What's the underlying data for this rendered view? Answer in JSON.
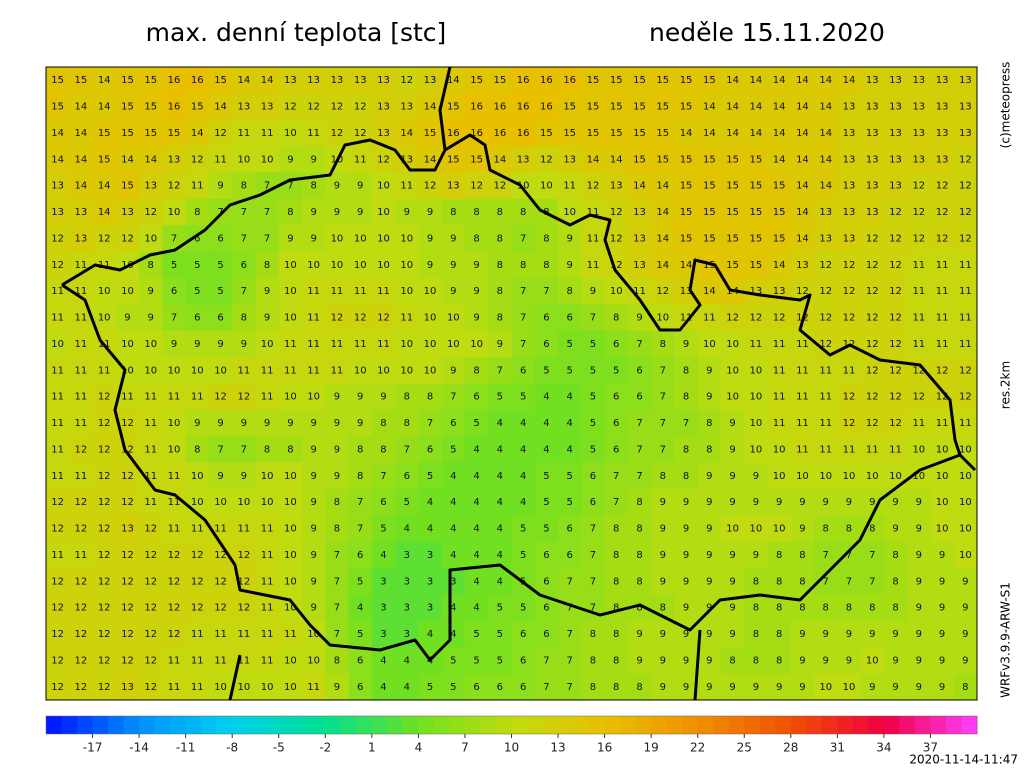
{
  "header": {
    "title": "max. denní teplota [stc]",
    "date": "neděle 15.11.2020"
  },
  "side_labels": [
    "(c)meteopress",
    "res.2km",
    "WRFv3.9.9-ARW-S1"
  ],
  "timestamp": "2020-11-14-11:47",
  "colorbar": {
    "lim": [
      -20,
      40
    ],
    "ticks": [
      -17,
      -14,
      -11,
      -8,
      -5,
      -2,
      1,
      4,
      7,
      10,
      13,
      16,
      19,
      22,
      25,
      28,
      31,
      34,
      37
    ],
    "colors": [
      "#0010ff",
      "#0090ff",
      "#00d0f0",
      "#00e090",
      "#70e020",
      "#c0dc10",
      "#e8c000",
      "#f09000",
      "#f05000",
      "#f00040",
      "#ff40ff"
    ]
  },
  "grid": {
    "rows": [
      [
        15,
        15,
        14,
        15,
        15,
        16,
        16,
        15,
        14,
        14,
        13,
        13,
        13,
        13,
        13,
        12,
        13,
        14,
        15,
        15,
        16,
        16,
        16,
        15,
        15,
        15,
        15,
        15,
        15,
        14,
        14,
        14,
        14,
        14,
        14,
        13,
        13,
        13,
        13,
        13
      ],
      [
        15,
        14,
        14,
        15,
        15,
        16,
        15,
        14,
        13,
        13,
        12,
        12,
        12,
        12,
        13,
        13,
        14,
        15,
        16,
        16,
        16,
        16,
        15,
        15,
        15,
        15,
        15,
        15,
        14,
        14,
        14,
        14,
        14,
        14,
        13,
        13,
        13,
        13,
        13,
        13
      ],
      [
        14,
        14,
        15,
        15,
        15,
        15,
        14,
        12,
        11,
        11,
        10,
        11,
        12,
        12,
        13,
        14,
        15,
        16,
        16,
        16,
        16,
        15,
        15,
        15,
        15,
        15,
        15,
        14,
        14,
        14,
        14,
        14,
        14,
        14,
        13,
        13,
        13,
        13,
        13,
        13
      ],
      [
        14,
        14,
        15,
        14,
        14,
        13,
        12,
        11,
        10,
        10,
        9,
        9,
        10,
        11,
        12,
        13,
        14,
        15,
        15,
        14,
        13,
        12,
        13,
        14,
        14,
        15,
        15,
        15,
        15,
        15,
        15,
        14,
        14,
        14,
        13,
        13,
        13,
        13,
        13,
        12
      ],
      [
        13,
        14,
        14,
        15,
        13,
        12,
        11,
        9,
        8,
        7,
        7,
        8,
        9,
        9,
        10,
        11,
        12,
        13,
        12,
        12,
        10,
        10,
        11,
        12,
        13,
        14,
        14,
        15,
        15,
        15,
        15,
        15,
        14,
        14,
        13,
        13,
        13,
        12,
        12,
        12
      ],
      [
        13,
        13,
        14,
        13,
        12,
        10,
        8,
        7,
        7,
        7,
        8,
        9,
        9,
        9,
        10,
        9,
        9,
        8,
        8,
        8,
        8,
        8,
        10,
        11,
        12,
        13,
        14,
        15,
        15,
        15,
        15,
        15,
        14,
        13,
        13,
        13,
        12,
        12,
        12,
        12
      ],
      [
        12,
        13,
        12,
        12,
        10,
        7,
        6,
        6,
        7,
        7,
        9,
        9,
        10,
        10,
        10,
        10,
        9,
        9,
        8,
        8,
        7,
        8,
        9,
        11,
        12,
        13,
        14,
        15,
        15,
        15,
        15,
        15,
        14,
        13,
        13,
        12,
        12,
        12,
        12,
        12
      ],
      [
        12,
        11,
        11,
        10,
        8,
        5,
        5,
        5,
        6,
        8,
        10,
        10,
        10,
        10,
        10,
        10,
        9,
        9,
        9,
        8,
        8,
        8,
        9,
        11,
        12,
        13,
        14,
        14,
        15,
        15,
        15,
        14,
        13,
        12,
        12,
        12,
        12,
        11,
        11,
        11
      ],
      [
        11,
        11,
        10,
        10,
        9,
        6,
        5,
        5,
        7,
        9,
        10,
        11,
        11,
        11,
        11,
        10,
        10,
        9,
        9,
        8,
        7,
        7,
        8,
        9,
        10,
        11,
        12,
        13,
        14,
        14,
        13,
        13,
        12,
        12,
        12,
        12,
        12,
        11,
        11,
        11
      ],
      [
        11,
        11,
        10,
        9,
        9,
        7,
        6,
        6,
        8,
        9,
        10,
        11,
        12,
        12,
        12,
        11,
        10,
        10,
        9,
        8,
        7,
        6,
        6,
        7,
        8,
        9,
        10,
        11,
        11,
        12,
        12,
        12,
        12,
        12,
        12,
        12,
        12,
        11,
        11,
        11
      ],
      [
        10,
        11,
        11,
        10,
        10,
        9,
        9,
        9,
        9,
        10,
        11,
        11,
        11,
        11,
        11,
        10,
        10,
        10,
        10,
        9,
        7,
        6,
        5,
        5,
        6,
        7,
        8,
        9,
        10,
        10,
        11,
        11,
        11,
        12,
        12,
        12,
        12,
        11,
        11,
        11
      ],
      [
        11,
        11,
        11,
        10,
        10,
        10,
        10,
        10,
        11,
        11,
        11,
        11,
        11,
        10,
        10,
        10,
        10,
        9,
        8,
        7,
        6,
        5,
        5,
        5,
        5,
        6,
        7,
        8,
        9,
        10,
        10,
        11,
        11,
        11,
        11,
        12,
        12,
        12,
        12,
        12
      ],
      [
        11,
        11,
        12,
        11,
        11,
        11,
        11,
        12,
        12,
        11,
        10,
        10,
        9,
        9,
        9,
        8,
        8,
        7,
        6,
        5,
        5,
        4,
        4,
        5,
        6,
        6,
        7,
        8,
        9,
        10,
        10,
        11,
        11,
        11,
        12,
        12,
        12,
        12,
        12,
        12
      ],
      [
        11,
        11,
        12,
        12,
        11,
        10,
        9,
        9,
        9,
        9,
        9,
        9,
        9,
        9,
        8,
        8,
        7,
        6,
        5,
        4,
        4,
        4,
        4,
        5,
        6,
        7,
        7,
        7,
        8,
        9,
        10,
        11,
        11,
        11,
        12,
        12,
        12,
        11,
        11,
        11
      ],
      [
        11,
        12,
        12,
        12,
        11,
        10,
        8,
        7,
        7,
        8,
        8,
        9,
        9,
        8,
        8,
        7,
        6,
        5,
        4,
        4,
        4,
        4,
        4,
        5,
        6,
        7,
        7,
        8,
        8,
        9,
        10,
        10,
        11,
        11,
        11,
        11,
        11,
        10,
        10,
        10
      ],
      [
        11,
        11,
        12,
        12,
        11,
        11,
        10,
        9,
        9,
        10,
        10,
        9,
        9,
        8,
        7,
        6,
        5,
        4,
        4,
        4,
        4,
        5,
        5,
        6,
        7,
        7,
        8,
        8,
        9,
        9,
        9,
        10,
        10,
        10,
        10,
        10,
        10,
        10,
        10,
        10
      ],
      [
        12,
        12,
        12,
        12,
        11,
        11,
        10,
        10,
        10,
        10,
        10,
        9,
        8,
        7,
        6,
        5,
        4,
        4,
        4,
        4,
        4,
        5,
        5,
        6,
        7,
        8,
        9,
        9,
        9,
        9,
        9,
        9,
        9,
        9,
        9,
        9,
        9,
        9,
        10,
        10
      ],
      [
        12,
        12,
        12,
        13,
        12,
        11,
        11,
        11,
        11,
        11,
        10,
        9,
        8,
        7,
        5,
        4,
        4,
        4,
        4,
        4,
        5,
        5,
        6,
        7,
        8,
        8,
        9,
        9,
        9,
        10,
        10,
        10,
        9,
        8,
        8,
        8,
        9,
        9,
        10,
        10
      ],
      [
        11,
        11,
        12,
        12,
        12,
        12,
        12,
        12,
        12,
        11,
        10,
        9,
        7,
        6,
        4,
        3,
        3,
        4,
        4,
        4,
        5,
        6,
        6,
        7,
        8,
        8,
        9,
        9,
        9,
        9,
        9,
        8,
        8,
        7,
        7,
        7,
        8,
        9,
        9,
        10
      ],
      [
        12,
        12,
        12,
        12,
        12,
        12,
        12,
        12,
        12,
        11,
        10,
        9,
        7,
        5,
        3,
        3,
        3,
        3,
        4,
        4,
        5,
        6,
        7,
        7,
        8,
        8,
        9,
        9,
        9,
        9,
        8,
        8,
        8,
        7,
        7,
        7,
        8,
        9,
        9,
        9
      ],
      [
        12,
        12,
        12,
        12,
        12,
        12,
        12,
        12,
        12,
        11,
        10,
        9,
        7,
        4,
        3,
        3,
        3,
        4,
        4,
        5,
        5,
        6,
        7,
        7,
        8,
        8,
        8,
        9,
        9,
        9,
        8,
        8,
        8,
        8,
        8,
        8,
        8,
        9,
        9,
        9
      ],
      [
        12,
        12,
        12,
        12,
        12,
        12,
        11,
        11,
        11,
        11,
        11,
        10,
        7,
        5,
        3,
        3,
        4,
        4,
        5,
        5,
        6,
        6,
        7,
        8,
        8,
        9,
        9,
        9,
        9,
        9,
        8,
        8,
        9,
        9,
        9,
        9,
        9,
        9,
        9,
        9
      ],
      [
        12,
        12,
        12,
        12,
        12,
        11,
        11,
        11,
        11,
        11,
        10,
        10,
        8,
        6,
        4,
        4,
        4,
        5,
        5,
        5,
        6,
        7,
        7,
        8,
        8,
        9,
        9,
        9,
        9,
        8,
        8,
        8,
        9,
        9,
        9,
        10,
        9,
        9,
        9,
        9
      ],
      [
        12,
        12,
        12,
        13,
        12,
        11,
        11,
        10,
        10,
        10,
        10,
        11,
        9,
        6,
        4,
        4,
        5,
        5,
        6,
        6,
        6,
        7,
        7,
        8,
        8,
        8,
        9,
        9,
        9,
        9,
        9,
        9,
        9,
        10,
        10,
        9,
        9,
        9,
        9,
        8
      ]
    ]
  }
}
